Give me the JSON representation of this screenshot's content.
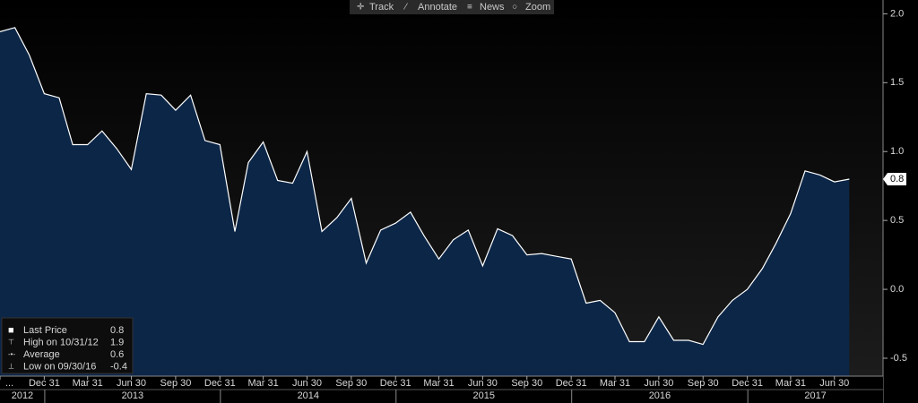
{
  "toolbar": [
    "Track",
    "Annotate",
    "News",
    "Zoom"
  ],
  "chart_data": {
    "type": "area",
    "x": [
      "2012-09-30",
      "2012-10-31",
      "2012-11-30",
      "2012-12-31",
      "2013-01-31",
      "2013-02-28",
      "2013-03-31",
      "2013-04-30",
      "2013-05-31",
      "2013-06-30",
      "2013-07-31",
      "2013-08-31",
      "2013-09-30",
      "2013-10-31",
      "2013-11-30",
      "2013-12-31",
      "2014-01-31",
      "2014-02-28",
      "2014-03-31",
      "2014-04-30",
      "2014-05-31",
      "2014-06-30",
      "2014-07-31",
      "2014-08-31",
      "2014-09-30",
      "2014-10-31",
      "2014-11-30",
      "2014-12-31",
      "2015-01-31",
      "2015-02-28",
      "2015-03-31",
      "2015-04-30",
      "2015-05-31",
      "2015-06-30",
      "2015-07-31",
      "2015-08-31",
      "2015-09-30",
      "2015-10-31",
      "2015-11-30",
      "2015-12-31",
      "2016-01-31",
      "2016-02-29",
      "2016-03-31",
      "2016-04-30",
      "2016-05-31",
      "2016-06-30",
      "2016-07-31",
      "2016-08-31",
      "2016-09-30",
      "2016-10-31",
      "2016-11-30",
      "2016-12-31",
      "2017-01-31",
      "2017-02-28",
      "2017-03-31",
      "2017-04-30",
      "2017-05-31",
      "2017-06-30",
      "2017-07-31"
    ],
    "series": [
      {
        "color": "#0c2647",
        "line_color": "#ffffff",
        "values": [
          1.87,
          1.9,
          1.7,
          1.42,
          1.39,
          1.05,
          1.05,
          1.15,
          1.02,
          0.87,
          1.42,
          1.41,
          1.3,
          1.41,
          1.08,
          1.05,
          0.42,
          0.92,
          1.07,
          0.79,
          0.77,
          1.0,
          0.42,
          0.52,
          0.66,
          0.19,
          0.43,
          0.48,
          0.56,
          0.39,
          0.22,
          0.36,
          0.43,
          0.17,
          0.44,
          0.39,
          0.25,
          0.26,
          0.24,
          0.22,
          -0.1,
          -0.08,
          -0.17,
          -0.38,
          -0.38,
          -0.2,
          -0.37,
          -0.37,
          -0.4,
          -0.2,
          -0.08,
          0.0,
          0.15,
          0.33,
          0.55,
          0.86,
          0.83,
          0.78,
          0.8
        ]
      }
    ],
    "xlim": [
      "2012-09-30",
      "2017-10-09"
    ],
    "xticks": [
      {
        "value": "2012-09-30",
        "label": "..."
      },
      {
        "value": "2012-12-31",
        "label": "Dec 31"
      },
      {
        "value": "2013-03-31",
        "label": "Mar 31"
      },
      {
        "value": "2013-06-30",
        "label": "Jun 30"
      },
      {
        "value": "2013-09-30",
        "label": "Sep 30"
      },
      {
        "value": "2013-12-31",
        "label": "Dec 31"
      },
      {
        "value": "2014-03-31",
        "label": "Mar 31"
      },
      {
        "value": "2014-06-30",
        "label": "Jun 30"
      },
      {
        "value": "2014-09-30",
        "label": "Sep 30"
      },
      {
        "value": "2014-12-31",
        "label": "Dec 31"
      },
      {
        "value": "2015-03-31",
        "label": "Mar 31"
      },
      {
        "value": "2015-06-30",
        "label": "Jun 30"
      },
      {
        "value": "2015-09-30",
        "label": "Sep 30"
      },
      {
        "value": "2015-12-31",
        "label": "Dec 31"
      },
      {
        "value": "2016-03-31",
        "label": "Mar 31"
      },
      {
        "value": "2016-06-30",
        "label": "Jun 30"
      },
      {
        "value": "2016-09-30",
        "label": "Sep 30"
      },
      {
        "value": "2016-12-31",
        "label": "Dec 31"
      },
      {
        "value": "2017-03-31",
        "label": "Mar 31"
      },
      {
        "value": "2017-06-30",
        "label": "Jun 30"
      }
    ],
    "year_ticks": [
      {
        "value": "2012-01-01",
        "label": "2012"
      },
      {
        "value": "2013-01-01",
        "label": "2013"
      },
      {
        "value": "2014-01-01",
        "label": "2014"
      },
      {
        "value": "2015-01-01",
        "label": "2015"
      },
      {
        "value": "2016-01-01",
        "label": "2016"
      },
      {
        "value": "2017-01-01",
        "label": "2017"
      }
    ],
    "ylim": [
      -0.63,
      2.1
    ],
    "yticks": [
      {
        "value": 2.0,
        "label": "2.0"
      },
      {
        "value": 1.5,
        "label": "1.5"
      },
      {
        "value": 1.0,
        "label": "1.0"
      },
      {
        "value": 0.5,
        "label": "0.5"
      },
      {
        "value": 0.0,
        "label": "0.0"
      },
      {
        "value": -0.5,
        "label": "-0.5"
      }
    ],
    "last_label": 0.8,
    "legend": [
      {
        "label": "Last Price",
        "value": 0.8
      },
      {
        "label": "High on 10/31/12",
        "value": 1.9
      },
      {
        "label": "Average",
        "value": 0.6
      },
      {
        "label": "Low on 09/30/16",
        "value": -0.4
      }
    ]
  }
}
